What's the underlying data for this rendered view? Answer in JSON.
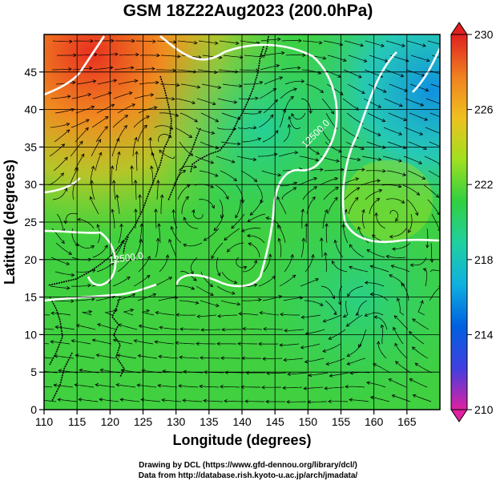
{
  "title": "GSM 18Z22Aug2023 (200.0hPa)",
  "xaxis": {
    "label": "Longitude (degrees)",
    "min": 110,
    "max": 170,
    "ticks": [
      110,
      115,
      120,
      125,
      130,
      135,
      140,
      145,
      150,
      155,
      160,
      165
    ]
  },
  "yaxis": {
    "label": "Latitude  (degrees)",
    "min": 0,
    "max": 50,
    "ticks": [
      0,
      5,
      10,
      15,
      20,
      25,
      30,
      35,
      40,
      45
    ]
  },
  "colorbar": {
    "min": 210,
    "max": 230,
    "ticks": [
      210,
      214,
      218,
      222,
      226,
      230
    ],
    "stops": [
      "#e020a0",
      "#4040e0",
      "#0060e0",
      "#10b0e0",
      "#20d0a0",
      "#30d040",
      "#a0e020",
      "#f0c020",
      "#f08020",
      "#e02020"
    ]
  },
  "contour_labels": [
    {
      "text": "12500.0",
      "lon": 151.5,
      "lat": 36.5,
      "angle": -45
    },
    {
      "text": "12500.0",
      "lon": 122.5,
      "lat": 19.8,
      "angle": -8
    }
  ],
  "credits": {
    "line1": "Drawing by DCL (https://www.gfd-dennou.org/library/dcl/)",
    "line2": "Data from http://database.rish.kyoto-u.ac.jp/arch/jmadata/"
  },
  "colors": {
    "contour": "#ffffff",
    "streamline": "#000000",
    "coast": "#000000",
    "grid": "#000000"
  }
}
